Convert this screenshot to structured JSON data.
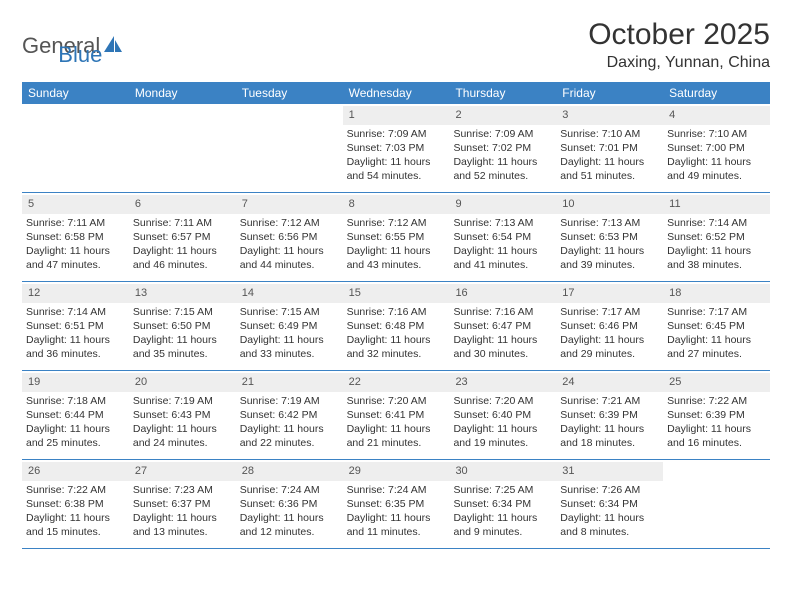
{
  "brand": {
    "name_part1": "General",
    "name_part2": "Blue"
  },
  "title": "October 2025",
  "location": "Daxing, Yunnan, China",
  "colors": {
    "header_bg": "#3b82c4",
    "header_text": "#ffffff",
    "daynum_bg": "#eeeeee",
    "border": "#3b82c4",
    "body_text": "#333333",
    "page_bg": "#ffffff",
    "brand_blue": "#2e75b6"
  },
  "fonts": {
    "title_size": 30,
    "location_size": 16,
    "weekday_size": 12,
    "cell_size": 10.5
  },
  "weekdays": [
    "Sunday",
    "Monday",
    "Tuesday",
    "Wednesday",
    "Thursday",
    "Friday",
    "Saturday"
  ],
  "weeks": [
    [
      {
        "n": "",
        "sunrise": "",
        "sunset": "",
        "daylight": ""
      },
      {
        "n": "",
        "sunrise": "",
        "sunset": "",
        "daylight": ""
      },
      {
        "n": "",
        "sunrise": "",
        "sunset": "",
        "daylight": ""
      },
      {
        "n": "1",
        "sunrise": "Sunrise: 7:09 AM",
        "sunset": "Sunset: 7:03 PM",
        "daylight": "Daylight: 11 hours and 54 minutes."
      },
      {
        "n": "2",
        "sunrise": "Sunrise: 7:09 AM",
        "sunset": "Sunset: 7:02 PM",
        "daylight": "Daylight: 11 hours and 52 minutes."
      },
      {
        "n": "3",
        "sunrise": "Sunrise: 7:10 AM",
        "sunset": "Sunset: 7:01 PM",
        "daylight": "Daylight: 11 hours and 51 minutes."
      },
      {
        "n": "4",
        "sunrise": "Sunrise: 7:10 AM",
        "sunset": "Sunset: 7:00 PM",
        "daylight": "Daylight: 11 hours and 49 minutes."
      }
    ],
    [
      {
        "n": "5",
        "sunrise": "Sunrise: 7:11 AM",
        "sunset": "Sunset: 6:58 PM",
        "daylight": "Daylight: 11 hours and 47 minutes."
      },
      {
        "n": "6",
        "sunrise": "Sunrise: 7:11 AM",
        "sunset": "Sunset: 6:57 PM",
        "daylight": "Daylight: 11 hours and 46 minutes."
      },
      {
        "n": "7",
        "sunrise": "Sunrise: 7:12 AM",
        "sunset": "Sunset: 6:56 PM",
        "daylight": "Daylight: 11 hours and 44 minutes."
      },
      {
        "n": "8",
        "sunrise": "Sunrise: 7:12 AM",
        "sunset": "Sunset: 6:55 PM",
        "daylight": "Daylight: 11 hours and 43 minutes."
      },
      {
        "n": "9",
        "sunrise": "Sunrise: 7:13 AM",
        "sunset": "Sunset: 6:54 PM",
        "daylight": "Daylight: 11 hours and 41 minutes."
      },
      {
        "n": "10",
        "sunrise": "Sunrise: 7:13 AM",
        "sunset": "Sunset: 6:53 PM",
        "daylight": "Daylight: 11 hours and 39 minutes."
      },
      {
        "n": "11",
        "sunrise": "Sunrise: 7:14 AM",
        "sunset": "Sunset: 6:52 PM",
        "daylight": "Daylight: 11 hours and 38 minutes."
      }
    ],
    [
      {
        "n": "12",
        "sunrise": "Sunrise: 7:14 AM",
        "sunset": "Sunset: 6:51 PM",
        "daylight": "Daylight: 11 hours and 36 minutes."
      },
      {
        "n": "13",
        "sunrise": "Sunrise: 7:15 AM",
        "sunset": "Sunset: 6:50 PM",
        "daylight": "Daylight: 11 hours and 35 minutes."
      },
      {
        "n": "14",
        "sunrise": "Sunrise: 7:15 AM",
        "sunset": "Sunset: 6:49 PM",
        "daylight": "Daylight: 11 hours and 33 minutes."
      },
      {
        "n": "15",
        "sunrise": "Sunrise: 7:16 AM",
        "sunset": "Sunset: 6:48 PM",
        "daylight": "Daylight: 11 hours and 32 minutes."
      },
      {
        "n": "16",
        "sunrise": "Sunrise: 7:16 AM",
        "sunset": "Sunset: 6:47 PM",
        "daylight": "Daylight: 11 hours and 30 minutes."
      },
      {
        "n": "17",
        "sunrise": "Sunrise: 7:17 AM",
        "sunset": "Sunset: 6:46 PM",
        "daylight": "Daylight: 11 hours and 29 minutes."
      },
      {
        "n": "18",
        "sunrise": "Sunrise: 7:17 AM",
        "sunset": "Sunset: 6:45 PM",
        "daylight": "Daylight: 11 hours and 27 minutes."
      }
    ],
    [
      {
        "n": "19",
        "sunrise": "Sunrise: 7:18 AM",
        "sunset": "Sunset: 6:44 PM",
        "daylight": "Daylight: 11 hours and 25 minutes."
      },
      {
        "n": "20",
        "sunrise": "Sunrise: 7:19 AM",
        "sunset": "Sunset: 6:43 PM",
        "daylight": "Daylight: 11 hours and 24 minutes."
      },
      {
        "n": "21",
        "sunrise": "Sunrise: 7:19 AM",
        "sunset": "Sunset: 6:42 PM",
        "daylight": "Daylight: 11 hours and 22 minutes."
      },
      {
        "n": "22",
        "sunrise": "Sunrise: 7:20 AM",
        "sunset": "Sunset: 6:41 PM",
        "daylight": "Daylight: 11 hours and 21 minutes."
      },
      {
        "n": "23",
        "sunrise": "Sunrise: 7:20 AM",
        "sunset": "Sunset: 6:40 PM",
        "daylight": "Daylight: 11 hours and 19 minutes."
      },
      {
        "n": "24",
        "sunrise": "Sunrise: 7:21 AM",
        "sunset": "Sunset: 6:39 PM",
        "daylight": "Daylight: 11 hours and 18 minutes."
      },
      {
        "n": "25",
        "sunrise": "Sunrise: 7:22 AM",
        "sunset": "Sunset: 6:39 PM",
        "daylight": "Daylight: 11 hours and 16 minutes."
      }
    ],
    [
      {
        "n": "26",
        "sunrise": "Sunrise: 7:22 AM",
        "sunset": "Sunset: 6:38 PM",
        "daylight": "Daylight: 11 hours and 15 minutes."
      },
      {
        "n": "27",
        "sunrise": "Sunrise: 7:23 AM",
        "sunset": "Sunset: 6:37 PM",
        "daylight": "Daylight: 11 hours and 13 minutes."
      },
      {
        "n": "28",
        "sunrise": "Sunrise: 7:24 AM",
        "sunset": "Sunset: 6:36 PM",
        "daylight": "Daylight: 11 hours and 12 minutes."
      },
      {
        "n": "29",
        "sunrise": "Sunrise: 7:24 AM",
        "sunset": "Sunset: 6:35 PM",
        "daylight": "Daylight: 11 hours and 11 minutes."
      },
      {
        "n": "30",
        "sunrise": "Sunrise: 7:25 AM",
        "sunset": "Sunset: 6:34 PM",
        "daylight": "Daylight: 11 hours and 9 minutes."
      },
      {
        "n": "31",
        "sunrise": "Sunrise: 7:26 AM",
        "sunset": "Sunset: 6:34 PM",
        "daylight": "Daylight: 11 hours and 8 minutes."
      },
      {
        "n": "",
        "sunrise": "",
        "sunset": "",
        "daylight": ""
      }
    ]
  ]
}
